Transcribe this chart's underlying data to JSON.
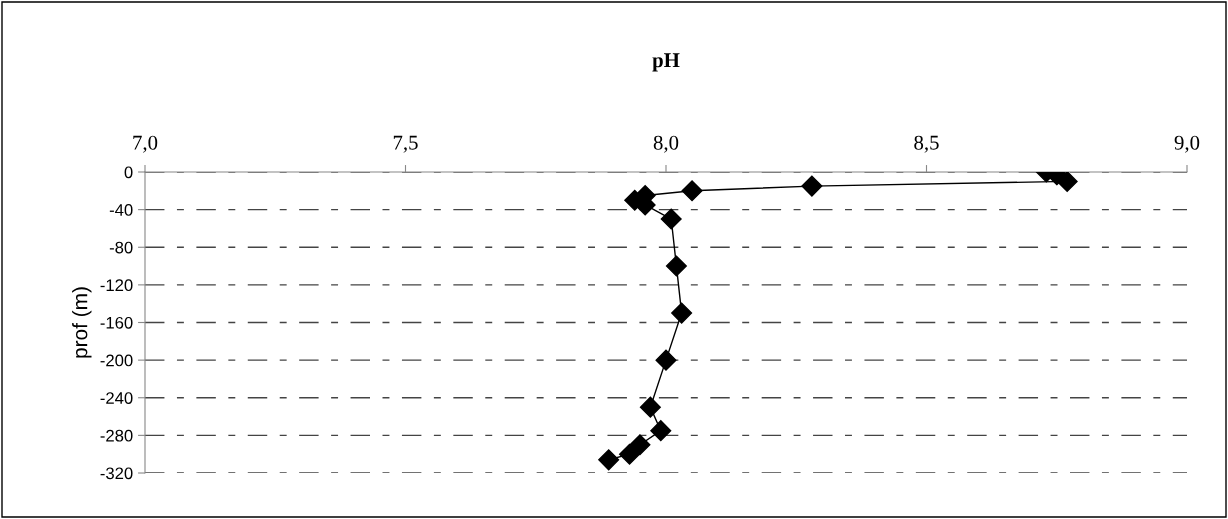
{
  "chart_data": {
    "type": "line",
    "title": "pH",
    "ylabel": "prof (m)",
    "series": [
      {
        "color": "#000000",
        "x": [
          8.73,
          8.75,
          8.77,
          8.28,
          8.05,
          7.96,
          7.94,
          7.96,
          8.01,
          8.02,
          8.03,
          8.0,
          7.97,
          7.99,
          7.95,
          7.93,
          7.89
        ],
        "values": [
          0,
          -3,
          -10,
          -15,
          -20,
          -25,
          -30,
          -35,
          -50,
          -100,
          -150,
          -200,
          -250,
          -275,
          -290,
          -300,
          -306
        ]
      }
    ],
    "xlim": [
      7.0,
      9.0
    ],
    "xticks": [
      {
        "value": 7.0,
        "label": "7,0"
      },
      {
        "value": 7.5,
        "label": "7,5"
      },
      {
        "value": 8.0,
        "label": "8,0"
      },
      {
        "value": 8.5,
        "label": "8,5"
      },
      {
        "value": 9.0,
        "label": "9,0"
      }
    ],
    "ylim": [
      -320,
      0
    ],
    "yticks": [
      -320,
      -280,
      -240,
      -200,
      -160,
      -120,
      -80,
      -40,
      0
    ],
    "grid": "y",
    "marker": "diamond",
    "line_style": "solid",
    "legend": false
  }
}
